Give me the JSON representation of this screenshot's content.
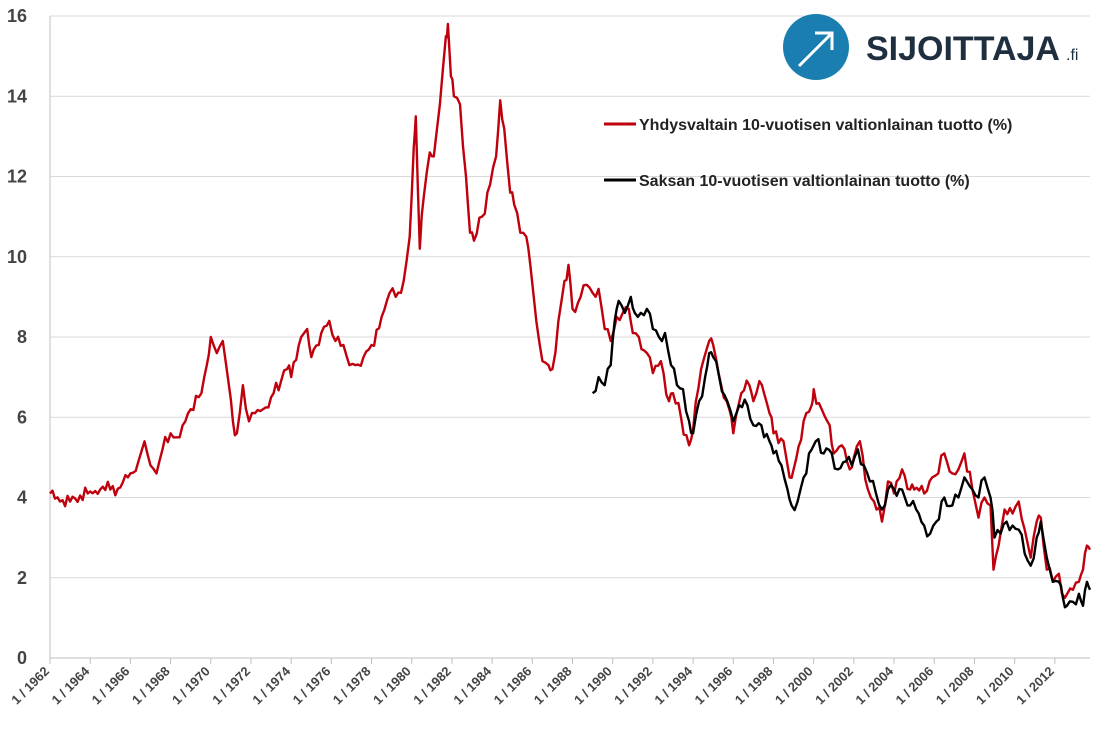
{
  "logo": {
    "text": "SIJOITTAJA",
    "suffix": ".fi",
    "circle_color": "#1a7fb0"
  },
  "chart_data": {
    "type": "line",
    "ylim": [
      0,
      16
    ],
    "yticks": [
      "0",
      "2",
      "4",
      "6",
      "8",
      "10",
      "12",
      "14",
      "16"
    ],
    "xlim": [
      1962,
      2013.75
    ],
    "xticks": [
      "1 / 1962",
      "1 / 1964",
      "1 / 1966",
      "1 / 1968",
      "1 / 1970",
      "1 / 1972",
      "1 / 1974",
      "1 / 1976",
      "1 / 1978",
      "1 / 1980",
      "1 / 1982",
      "1 / 1984",
      "1 / 1986",
      "1 / 1988",
      "1 / 1990",
      "1 / 1992",
      "1 / 1994",
      "1 / 1996",
      "1 / 1998",
      "1 / 2000",
      "1 / 2002",
      "1 / 2004",
      "1 / 2006",
      "1 / 2008",
      "1 / 2010",
      "1 / 2012"
    ],
    "grid": true,
    "legend_position": "top-right",
    "series": [
      {
        "name": "Yhdysvaltain 10-vuotisen valtionlainan tuotto (%)",
        "color": "#c0000c",
        "points": [
          [
            1962.0,
            4.1
          ],
          [
            1962.5,
            3.9
          ],
          [
            1963.0,
            3.9
          ],
          [
            1963.5,
            4.05
          ],
          [
            1964.0,
            4.15
          ],
          [
            1964.5,
            4.2
          ],
          [
            1965.0,
            4.2
          ],
          [
            1965.5,
            4.25
          ],
          [
            1966.0,
            4.6
          ],
          [
            1966.4,
            4.9
          ],
          [
            1966.7,
            5.4
          ],
          [
            1967.0,
            4.8
          ],
          [
            1967.3,
            4.6
          ],
          [
            1967.6,
            5.2
          ],
          [
            1968.0,
            5.6
          ],
          [
            1968.3,
            5.5
          ],
          [
            1968.6,
            5.8
          ],
          [
            1969.0,
            6.2
          ],
          [
            1969.4,
            6.5
          ],
          [
            1969.8,
            7.3
          ],
          [
            1970.0,
            8.0
          ],
          [
            1970.3,
            7.6
          ],
          [
            1970.6,
            7.9
          ],
          [
            1970.9,
            6.8
          ],
          [
            1971.1,
            5.9
          ],
          [
            1971.3,
            5.6
          ],
          [
            1971.6,
            6.8
          ],
          [
            1971.9,
            5.9
          ],
          [
            1972.2,
            6.1
          ],
          [
            1972.6,
            6.2
          ],
          [
            1973.0,
            6.5
          ],
          [
            1973.5,
            6.9
          ],
          [
            1973.8,
            7.2
          ],
          [
            1974.0,
            7.0
          ],
          [
            1974.5,
            8.0
          ],
          [
            1974.8,
            8.2
          ],
          [
            1975.0,
            7.5
          ],
          [
            1975.5,
            8.1
          ],
          [
            1975.9,
            8.4
          ],
          [
            1976.2,
            7.9
          ],
          [
            1976.6,
            7.8
          ],
          [
            1976.9,
            7.3
          ],
          [
            1977.2,
            7.3
          ],
          [
            1977.6,
            7.5
          ],
          [
            1978.0,
            7.8
          ],
          [
            1978.5,
            8.5
          ],
          [
            1978.9,
            9.1
          ],
          [
            1979.2,
            9.0
          ],
          [
            1979.6,
            9.4
          ],
          [
            1979.9,
            10.5
          ],
          [
            1980.1,
            12.7
          ],
          [
            1980.2,
            13.5
          ],
          [
            1980.4,
            10.2
          ],
          [
            1980.6,
            11.5
          ],
          [
            1980.9,
            12.6
          ],
          [
            1981.1,
            12.5
          ],
          [
            1981.4,
            13.8
          ],
          [
            1981.7,
            15.5
          ],
          [
            1981.8,
            15.8
          ],
          [
            1981.95,
            14.5
          ],
          [
            1982.1,
            14.0
          ],
          [
            1982.4,
            13.8
          ],
          [
            1982.7,
            12.0
          ],
          [
            1982.9,
            10.6
          ],
          [
            1983.1,
            10.4
          ],
          [
            1983.5,
            11.0
          ],
          [
            1983.9,
            11.8
          ],
          [
            1984.2,
            12.5
          ],
          [
            1984.4,
            13.9
          ],
          [
            1984.6,
            13.2
          ],
          [
            1984.9,
            11.6
          ],
          [
            1985.1,
            11.3
          ],
          [
            1985.4,
            10.6
          ],
          [
            1985.7,
            10.5
          ],
          [
            1985.9,
            9.8
          ],
          [
            1986.2,
            8.4
          ],
          [
            1986.5,
            7.4
          ],
          [
            1986.8,
            7.3
          ],
          [
            1987.0,
            7.2
          ],
          [
            1987.3,
            8.4
          ],
          [
            1987.6,
            9.4
          ],
          [
            1987.8,
            9.8
          ],
          [
            1988.0,
            8.7
          ],
          [
            1988.4,
            9.0
          ],
          [
            1988.7,
            9.3
          ],
          [
            1989.0,
            9.1
          ],
          [
            1989.3,
            9.2
          ],
          [
            1989.6,
            8.2
          ],
          [
            1989.9,
            7.9
          ],
          [
            1990.2,
            8.5
          ],
          [
            1990.5,
            8.6
          ],
          [
            1990.8,
            8.7
          ],
          [
            1991.0,
            8.1
          ],
          [
            1991.3,
            8.0
          ],
          [
            1991.7,
            7.6
          ],
          [
            1992.0,
            7.1
          ],
          [
            1992.4,
            7.4
          ],
          [
            1992.8,
            6.4
          ],
          [
            1993.0,
            6.6
          ],
          [
            1993.4,
            6.0
          ],
          [
            1993.8,
            5.3
          ],
          [
            1994.0,
            5.7
          ],
          [
            1994.4,
            7.2
          ],
          [
            1994.8,
            7.9
          ],
          [
            1995.0,
            7.8
          ],
          [
            1995.4,
            6.8
          ],
          [
            1995.8,
            6.2
          ],
          [
            1996.0,
            5.6
          ],
          [
            1996.4,
            6.6
          ],
          [
            1996.8,
            6.8
          ],
          [
            1997.0,
            6.4
          ],
          [
            1997.3,
            6.9
          ],
          [
            1997.8,
            6.1
          ],
          [
            1998.0,
            5.6
          ],
          [
            1998.5,
            5.4
          ],
          [
            1998.8,
            4.5
          ],
          [
            1999.0,
            4.7
          ],
          [
            1999.5,
            5.9
          ],
          [
            1999.9,
            6.3
          ],
          [
            2000.0,
            6.7
          ],
          [
            2000.4,
            6.2
          ],
          [
            2000.8,
            5.8
          ],
          [
            2001.0,
            5.1
          ],
          [
            2001.4,
            5.3
          ],
          [
            2001.8,
            4.7
          ],
          [
            2002.0,
            5.0
          ],
          [
            2002.3,
            5.4
          ],
          [
            2002.7,
            4.2
          ],
          [
            2003.0,
            3.9
          ],
          [
            2003.4,
            3.4
          ],
          [
            2003.7,
            4.4
          ],
          [
            2004.0,
            4.1
          ],
          [
            2004.4,
            4.7
          ],
          [
            2004.8,
            4.2
          ],
          [
            2005.0,
            4.2
          ],
          [
            2005.5,
            4.1
          ],
          [
            2005.9,
            4.5
          ],
          [
            2006.2,
            4.6
          ],
          [
            2006.5,
            5.1
          ],
          [
            2006.9,
            4.6
          ],
          [
            2007.2,
            4.7
          ],
          [
            2007.5,
            5.1
          ],
          [
            2007.9,
            4.2
          ],
          [
            2008.2,
            3.5
          ],
          [
            2008.5,
            4.0
          ],
          [
            2008.8,
            3.8
          ],
          [
            2008.95,
            2.2
          ],
          [
            2009.2,
            2.8
          ],
          [
            2009.5,
            3.7
          ],
          [
            2009.9,
            3.6
          ],
          [
            2010.2,
            3.9
          ],
          [
            2010.5,
            3.2
          ],
          [
            2010.8,
            2.5
          ],
          [
            2011.1,
            3.4
          ],
          [
            2011.3,
            3.5
          ],
          [
            2011.6,
            2.2
          ],
          [
            2011.9,
            1.9
          ],
          [
            2012.2,
            2.1
          ],
          [
            2012.5,
            1.5
          ],
          [
            2012.9,
            1.7
          ],
          [
            2013.2,
            1.9
          ],
          [
            2013.4,
            2.2
          ],
          [
            2013.6,
            2.8
          ],
          [
            2013.75,
            2.7
          ]
        ]
      },
      {
        "name": "Saksan 10-vuotisen valtionlainan tuotto (%)",
        "color": "#000000",
        "points": [
          [
            1989.0,
            6.6
          ],
          [
            1989.3,
            7.0
          ],
          [
            1989.6,
            6.8
          ],
          [
            1989.9,
            7.3
          ],
          [
            1990.1,
            8.4
          ],
          [
            1990.3,
            8.9
          ],
          [
            1990.6,
            8.6
          ],
          [
            1990.9,
            9.0
          ],
          [
            1991.1,
            8.6
          ],
          [
            1991.4,
            8.6
          ],
          [
            1991.7,
            8.7
          ],
          [
            1992.0,
            8.2
          ],
          [
            1992.3,
            8.0
          ],
          [
            1992.6,
            8.1
          ],
          [
            1992.9,
            7.3
          ],
          [
            1993.2,
            6.8
          ],
          [
            1993.5,
            6.7
          ],
          [
            1993.8,
            5.9
          ],
          [
            1994.0,
            5.6
          ],
          [
            1994.3,
            6.4
          ],
          [
            1994.6,
            7.0
          ],
          [
            1994.8,
            7.6
          ],
          [
            1995.0,
            7.5
          ],
          [
            1995.3,
            7.0
          ],
          [
            1995.7,
            6.4
          ],
          [
            1996.0,
            5.9
          ],
          [
            1996.3,
            6.3
          ],
          [
            1996.7,
            6.3
          ],
          [
            1997.0,
            5.8
          ],
          [
            1997.4,
            5.8
          ],
          [
            1997.8,
            5.4
          ],
          [
            1998.0,
            5.1
          ],
          [
            1998.4,
            4.8
          ],
          [
            1998.7,
            4.2
          ],
          [
            1998.9,
            3.8
          ],
          [
            1999.2,
            3.9
          ],
          [
            1999.5,
            4.5
          ],
          [
            1999.9,
            5.2
          ],
          [
            2000.1,
            5.4
          ],
          [
            2000.5,
            5.1
          ],
          [
            2000.9,
            5.1
          ],
          [
            2001.2,
            4.7
          ],
          [
            2001.6,
            4.9
          ],
          [
            2001.9,
            4.8
          ],
          [
            2002.2,
            5.2
          ],
          [
            2002.5,
            4.8
          ],
          [
            2002.8,
            4.4
          ],
          [
            2003.1,
            4.1
          ],
          [
            2003.4,
            3.7
          ],
          [
            2003.7,
            4.2
          ],
          [
            2004.0,
            4.2
          ],
          [
            2004.4,
            4.2
          ],
          [
            2004.8,
            3.8
          ],
          [
            2005.1,
            3.7
          ],
          [
            2005.5,
            3.3
          ],
          [
            2005.8,
            3.1
          ],
          [
            2006.1,
            3.4
          ],
          [
            2006.5,
            4.0
          ],
          [
            2006.9,
            3.8
          ],
          [
            2007.2,
            4.0
          ],
          [
            2007.5,
            4.5
          ],
          [
            2007.9,
            4.2
          ],
          [
            2008.2,
            4.0
          ],
          [
            2008.5,
            4.5
          ],
          [
            2008.8,
            4.0
          ],
          [
            2009.0,
            3.0
          ],
          [
            2009.3,
            3.1
          ],
          [
            2009.6,
            3.4
          ],
          [
            2009.9,
            3.3
          ],
          [
            2010.2,
            3.2
          ],
          [
            2010.5,
            2.6
          ],
          [
            2010.8,
            2.3
          ],
          [
            2011.1,
            3.0
          ],
          [
            2011.3,
            3.4
          ],
          [
            2011.6,
            2.5
          ],
          [
            2011.9,
            1.9
          ],
          [
            2012.2,
            1.9
          ],
          [
            2012.4,
            1.5
          ],
          [
            2012.6,
            1.3
          ],
          [
            2012.9,
            1.4
          ],
          [
            2013.2,
            1.6
          ],
          [
            2013.4,
            1.3
          ],
          [
            2013.6,
            1.9
          ],
          [
            2013.75,
            1.7
          ]
        ]
      }
    ]
  }
}
